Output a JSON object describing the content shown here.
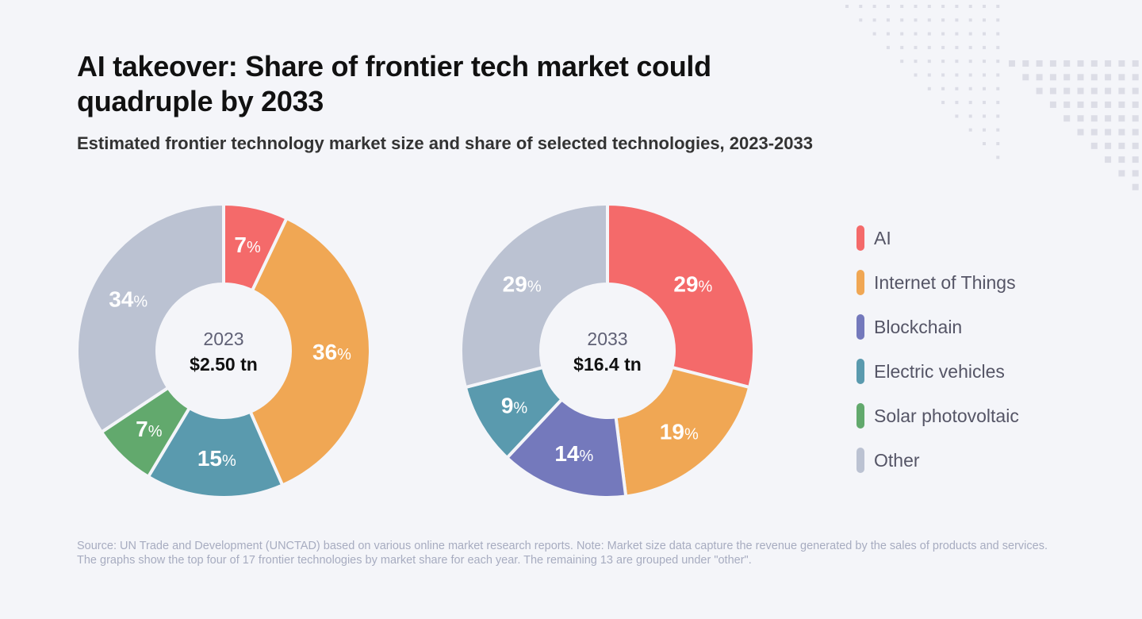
{
  "title": "AI takeover: Share of frontier tech market could quadruple by 2033",
  "subtitle": "Estimated frontier technology market size and share of selected technologies, 2023-2033",
  "colors": {
    "AI": "#f46a6a",
    "Internet of Things": "#f0a754",
    "Blockchain": "#7479bc",
    "Electric vehicles": "#5a9aae",
    "Solar photovoltaic": "#62a96d",
    "Other": "#bbc2d2",
    "background": "#f4f5f9"
  },
  "legend": [
    "AI",
    "Internet of Things",
    "Blockchain",
    "Electric vehicles",
    "Solar photovoltaic",
    "Other"
  ],
  "chart_data": [
    {
      "type": "pie",
      "variant": "donut",
      "center_label": "2023",
      "center_value": "$2.50 tn",
      "unit": "%",
      "slices": [
        {
          "name": "AI",
          "value": 7
        },
        {
          "name": "Internet of Things",
          "value": 36
        },
        {
          "name": "Electric vehicles",
          "value": 15
        },
        {
          "name": "Solar photovoltaic",
          "value": 7
        },
        {
          "name": "Other",
          "value": 34
        }
      ]
    },
    {
      "type": "pie",
      "variant": "donut",
      "center_label": "2033",
      "center_value": "$16.4 tn",
      "unit": "%",
      "slices": [
        {
          "name": "AI",
          "value": 29
        },
        {
          "name": "Internet of Things",
          "value": 19
        },
        {
          "name": "Blockchain",
          "value": 14
        },
        {
          "name": "Electric vehicles",
          "value": 9
        },
        {
          "name": "Other",
          "value": 29
        }
      ]
    }
  ],
  "source": "Source: UN Trade and Development (UNCTAD) based on various online market research reports. Note: Market size data capture the revenue generated by the sales of products and services. The graphs show the top four of 17 frontier technologies by market share for each year. The remaining 13 are grouped under \"other\"."
}
